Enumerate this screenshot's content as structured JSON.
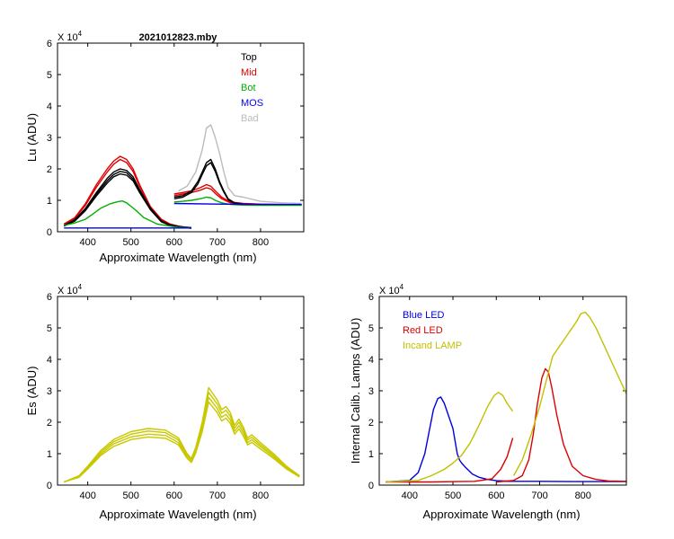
{
  "colors": {
    "top": "#000000",
    "mid": "#e00000",
    "bot": "#00b000",
    "mos": "#0000ee",
    "bad": "#bbbbbb",
    "es": "#c8c800",
    "blue_led": "#0000dd",
    "red_led": "#dd0000",
    "incand": "#c0c000"
  },
  "chart_data": [
    {
      "id": "lu",
      "type": "line",
      "title": "2021012823.mby",
      "xlabel": "Approximate Wavelength (nm)",
      "ylabel": "Lu (ADU)",
      "exponent_label": "X 10",
      "exponent_power": "4",
      "xlim": [
        330,
        900
      ],
      "ylim": [
        0,
        6
      ],
      "xticks": [
        400,
        500,
        600,
        700,
        800
      ],
      "yticks": [
        0,
        1,
        2,
        3,
        4,
        5,
        6
      ],
      "legend": [
        {
          "label": "Top",
          "color": "top"
        },
        {
          "label": "Mid",
          "color": "mid"
        },
        {
          "label": "Bot",
          "color": "bot"
        },
        {
          "label": "MOS",
          "color": "mos"
        },
        {
          "label": "Bad",
          "color": "bad"
        }
      ],
      "series": [
        {
          "name": "Bad",
          "color": "bad",
          "x": [
            610,
            630,
            650,
            665,
            675,
            685,
            695,
            705,
            715,
            725,
            740,
            760,
            800,
            850,
            895
          ],
          "y": [
            1.3,
            1.45,
            1.9,
            2.6,
            3.3,
            3.4,
            3.0,
            2.5,
            1.9,
            1.4,
            1.15,
            1.1,
            0.97,
            0.92,
            0.9
          ]
        },
        {
          "name": "Mid",
          "color": "mid",
          "x": [
            345,
            370,
            395,
            420,
            445,
            460,
            475,
            490,
            505,
            520,
            545,
            570,
            590,
            610,
            625,
            640
          ],
          "y": [
            0.25,
            0.45,
            0.9,
            1.5,
            2.0,
            2.25,
            2.4,
            2.3,
            2.0,
            1.5,
            0.8,
            0.4,
            0.25,
            0.18,
            0.15,
            0.13
          ]
        },
        {
          "name": "Mid",
          "color": "mid",
          "x": [
            345,
            370,
            395,
            420,
            445,
            460,
            475,
            490,
            505,
            520,
            545,
            570,
            590,
            610,
            625,
            640
          ],
          "y": [
            0.24,
            0.42,
            0.85,
            1.42,
            1.9,
            2.15,
            2.3,
            2.2,
            1.92,
            1.45,
            0.78,
            0.39,
            0.24,
            0.17,
            0.14,
            0.12
          ]
        },
        {
          "name": "Mid",
          "color": "mid",
          "x": [
            600,
            620,
            640,
            660,
            675,
            685,
            695,
            710,
            730,
            760,
            800,
            850,
            895
          ],
          "y": [
            1.2,
            1.25,
            1.3,
            1.4,
            1.5,
            1.45,
            1.3,
            1.1,
            0.95,
            0.9,
            0.88,
            0.87,
            0.86
          ]
        },
        {
          "name": "Mid",
          "color": "mid",
          "x": [
            600,
            620,
            640,
            660,
            675,
            685,
            695,
            710,
            730,
            760,
            800,
            850,
            895
          ],
          "y": [
            1.15,
            1.2,
            1.25,
            1.32,
            1.4,
            1.36,
            1.22,
            1.05,
            0.92,
            0.88,
            0.86,
            0.85,
            0.85
          ]
        },
        {
          "name": "Top",
          "color": "top",
          "x": [
            345,
            370,
            395,
            420,
            445,
            460,
            475,
            490,
            505,
            520,
            545,
            570,
            590,
            610,
            625,
            640
          ],
          "y": [
            0.2,
            0.38,
            0.75,
            1.25,
            1.7,
            1.9,
            2.0,
            1.95,
            1.75,
            1.35,
            0.75,
            0.35,
            0.22,
            0.17,
            0.15,
            0.13
          ]
        },
        {
          "name": "Top",
          "color": "top",
          "x": [
            345,
            370,
            395,
            420,
            445,
            460,
            475,
            490,
            505,
            520,
            545,
            570,
            590,
            610,
            625,
            640
          ],
          "y": [
            0.19,
            0.36,
            0.72,
            1.2,
            1.62,
            1.82,
            1.92,
            1.88,
            1.68,
            1.3,
            0.72,
            0.33,
            0.21,
            0.16,
            0.14,
            0.12
          ]
        },
        {
          "name": "Top",
          "color": "top",
          "x": [
            345,
            370,
            395,
            420,
            445,
            460,
            475,
            490,
            505,
            520,
            545,
            570,
            590,
            610,
            625,
            640
          ],
          "y": [
            0.18,
            0.34,
            0.68,
            1.14,
            1.55,
            1.75,
            1.84,
            1.8,
            1.62,
            1.25,
            0.7,
            0.32,
            0.2,
            0.15,
            0.13,
            0.11
          ]
        },
        {
          "name": "Top",
          "color": "top",
          "x": [
            600,
            620,
            640,
            655,
            665,
            675,
            685,
            695,
            705,
            715,
            725,
            740,
            760,
            800,
            850,
            895
          ],
          "y": [
            1.1,
            1.15,
            1.3,
            1.6,
            1.9,
            2.2,
            2.3,
            2.0,
            1.6,
            1.3,
            1.05,
            0.92,
            0.88,
            0.86,
            0.86,
            0.86
          ]
        },
        {
          "name": "Top",
          "color": "top",
          "x": [
            600,
            620,
            640,
            655,
            665,
            675,
            685,
            695,
            705,
            715,
            725,
            740,
            760,
            800,
            850,
            895
          ],
          "y": [
            1.05,
            1.1,
            1.25,
            1.52,
            1.82,
            2.1,
            2.2,
            1.92,
            1.55,
            1.26,
            1.02,
            0.9,
            0.86,
            0.85,
            0.85,
            0.85
          ]
        },
        {
          "name": "Bot",
          "color": "bot",
          "x": [
            345,
            370,
            395,
            410,
            430,
            450,
            470,
            480,
            490,
            510,
            530,
            560,
            590,
            610,
            625,
            640
          ],
          "y": [
            0.2,
            0.28,
            0.4,
            0.55,
            0.75,
            0.88,
            0.96,
            0.98,
            0.92,
            0.7,
            0.45,
            0.25,
            0.18,
            0.14,
            0.13,
            0.12
          ]
        },
        {
          "name": "Bot",
          "color": "bot",
          "x": [
            600,
            620,
            640,
            660,
            675,
            685,
            695,
            710,
            730,
            760,
            800,
            850,
            895
          ],
          "y": [
            0.95,
            0.97,
            1.0,
            1.05,
            1.1,
            1.08,
            1.0,
            0.92,
            0.87,
            0.85,
            0.84,
            0.84,
            0.84
          ]
        },
        {
          "name": "MOS",
          "color": "mos",
          "x": [
            345,
            400,
            500,
            600,
            640
          ],
          "y": [
            0.12,
            0.12,
            0.12,
            0.12,
            0.12
          ]
        },
        {
          "name": "MOS",
          "color": "mos",
          "x": [
            600,
            700,
            800,
            895
          ],
          "y": [
            0.9,
            0.88,
            0.87,
            0.87
          ]
        }
      ]
    },
    {
      "id": "es",
      "type": "line",
      "title": "",
      "xlabel": "Approximate Wavelength (nm)",
      "ylabel": "Es  (ADU)",
      "exponent_label": "X 10",
      "exponent_power": "4",
      "xlim": [
        330,
        900
      ],
      "ylim": [
        0,
        6
      ],
      "xticks": [
        400,
        500,
        600,
        700,
        800
      ],
      "yticks": [
        0,
        1,
        2,
        3,
        4,
        5,
        6
      ],
      "legend": [],
      "series": [
        {
          "name": "Es",
          "color": "es",
          "x": [
            345,
            380,
            400,
            430,
            460,
            500,
            540,
            580,
            610,
            630,
            640,
            650,
            665,
            680,
            690,
            700,
            710,
            720,
            730,
            740,
            750,
            760,
            770,
            780,
            800,
            830,
            860,
            890
          ],
          "y": [
            0.1,
            0.3,
            0.6,
            1.1,
            1.45,
            1.7,
            1.8,
            1.75,
            1.5,
            1.0,
            0.85,
            1.2,
            2.0,
            3.1,
            2.9,
            2.7,
            2.4,
            2.5,
            2.3,
            1.9,
            2.1,
            1.85,
            1.5,
            1.6,
            1.35,
            1.0,
            0.6,
            0.3
          ]
        },
        {
          "name": "Es",
          "color": "es",
          "x": [
            345,
            380,
            400,
            430,
            460,
            500,
            540,
            580,
            610,
            630,
            640,
            650,
            665,
            680,
            690,
            700,
            710,
            720,
            730,
            740,
            750,
            760,
            770,
            780,
            800,
            830,
            860,
            890
          ],
          "y": [
            0.1,
            0.28,
            0.57,
            1.05,
            1.38,
            1.62,
            1.72,
            1.67,
            1.43,
            0.96,
            0.82,
            1.15,
            1.9,
            2.95,
            2.76,
            2.57,
            2.29,
            2.38,
            2.19,
            1.81,
            2.0,
            1.76,
            1.43,
            1.52,
            1.28,
            0.95,
            0.57,
            0.28
          ]
        },
        {
          "name": "Es",
          "color": "es",
          "x": [
            345,
            380,
            400,
            430,
            460,
            500,
            540,
            580,
            610,
            630,
            640,
            650,
            665,
            680,
            690,
            700,
            710,
            720,
            730,
            740,
            750,
            760,
            770,
            780,
            800,
            830,
            860,
            890
          ],
          "y": [
            0.1,
            0.26,
            0.54,
            0.99,
            1.31,
            1.53,
            1.62,
            1.58,
            1.35,
            0.9,
            0.77,
            1.08,
            1.8,
            2.79,
            2.61,
            2.43,
            2.16,
            2.25,
            2.07,
            1.71,
            1.89,
            1.67,
            1.35,
            1.44,
            1.22,
            0.9,
            0.54,
            0.27
          ]
        },
        {
          "name": "Es",
          "color": "es",
          "x": [
            345,
            380,
            400,
            430,
            460,
            500,
            540,
            580,
            610,
            630,
            640,
            650,
            665,
            680,
            690,
            700,
            710,
            720,
            730,
            740,
            750,
            760,
            770,
            780,
            800,
            830,
            860,
            890
          ],
          "y": [
            0.1,
            0.25,
            0.51,
            0.94,
            1.23,
            1.45,
            1.53,
            1.49,
            1.28,
            0.85,
            0.72,
            1.02,
            1.7,
            2.64,
            2.47,
            2.3,
            2.04,
            2.13,
            1.96,
            1.62,
            1.79,
            1.57,
            1.28,
            1.36,
            1.15,
            0.85,
            0.51,
            0.26
          ]
        }
      ]
    },
    {
      "id": "lamps",
      "type": "line",
      "title": "",
      "xlabel": "Approximate Wavelength (nm)",
      "ylabel": "Internal Calib. Lamps  (ADU)",
      "exponent_label": "X 10",
      "exponent_power": "4",
      "xlim": [
        330,
        900
      ],
      "ylim": [
        0,
        6
      ],
      "xticks": [
        400,
        500,
        600,
        700,
        800
      ],
      "yticks": [
        0,
        1,
        2,
        3,
        4,
        5,
        6
      ],
      "legend": [
        {
          "label": "Blue LED",
          "color": "blue_led"
        },
        {
          "label": "Red LED",
          "color": "red_led"
        },
        {
          "label": "Incand LAMP",
          "color": "incand"
        }
      ],
      "series": [
        {
          "name": "Blue LED",
          "color": "blue_led",
          "x": [
            345,
            400,
            420,
            435,
            445,
            455,
            465,
            472,
            480,
            490,
            500,
            505,
            510,
            515,
            520,
            530,
            545,
            560,
            580,
            600,
            640
          ],
          "y": [
            0.1,
            0.15,
            0.4,
            1.0,
            1.7,
            2.4,
            2.75,
            2.8,
            2.6,
            2.2,
            1.8,
            1.4,
            1.0,
            0.8,
            0.7,
            0.55,
            0.35,
            0.25,
            0.18,
            0.14,
            0.12
          ]
        },
        {
          "name": "Blue LED",
          "color": "blue_led",
          "x": [
            600,
            700,
            800,
            900
          ],
          "y": [
            0.12,
            0.12,
            0.11,
            0.11
          ]
        },
        {
          "name": "Red LED",
          "color": "red_led",
          "x": [
            345,
            450,
            550,
            590,
            610,
            625,
            638
          ],
          "y": [
            0.1,
            0.1,
            0.12,
            0.2,
            0.5,
            0.9,
            1.5
          ]
        },
        {
          "name": "Red LED",
          "color": "red_led",
          "x": [
            600,
            640,
            660,
            675,
            685,
            695,
            705,
            713,
            720,
            728,
            740,
            755,
            775,
            800,
            830,
            860,
            900
          ],
          "y": [
            0.1,
            0.15,
            0.3,
            0.8,
            1.6,
            2.6,
            3.4,
            3.7,
            3.6,
            3.1,
            2.2,
            1.3,
            0.6,
            0.3,
            0.18,
            0.13,
            0.12
          ]
        },
        {
          "name": "Incand LAMP",
          "color": "incand",
          "x": [
            345,
            420,
            450,
            480,
            500,
            520,
            540,
            560,
            580,
            595,
            605,
            615,
            625,
            638
          ],
          "y": [
            0.1,
            0.15,
            0.3,
            0.5,
            0.7,
            0.95,
            1.35,
            1.9,
            2.5,
            2.85,
            2.95,
            2.85,
            2.6,
            2.35
          ]
        },
        {
          "name": "Incand LAMP",
          "color": "incand",
          "x": [
            640,
            660,
            680,
            700,
            715,
            730,
            750,
            770,
            785,
            795,
            805,
            815,
            830,
            850,
            870,
            890,
            900
          ],
          "y": [
            0.3,
            0.8,
            1.6,
            2.5,
            3.3,
            4.1,
            4.5,
            4.9,
            5.2,
            5.45,
            5.5,
            5.35,
            5.0,
            4.4,
            3.8,
            3.2,
            2.9
          ]
        }
      ]
    }
  ]
}
